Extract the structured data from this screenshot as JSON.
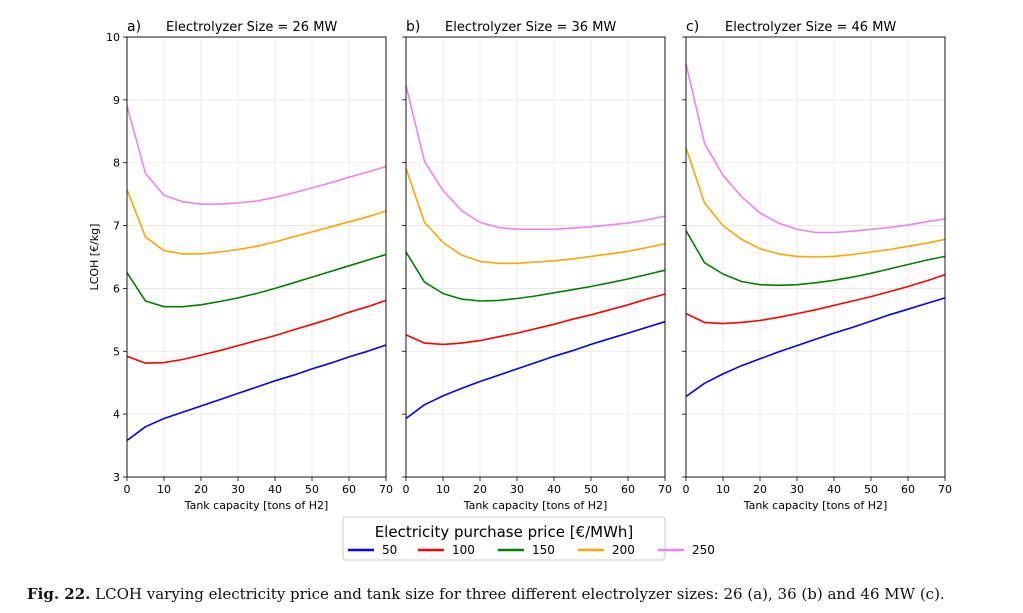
{
  "chart_data": {
    "type": "line",
    "x": [
      0,
      5,
      10,
      15,
      20,
      25,
      30,
      35,
      40,
      45,
      50,
      55,
      60,
      65,
      70
    ],
    "xlabel": "Tank capacity [tons of H2]",
    "ylabel": "LCOH [€/kg]",
    "xlim": [
      0,
      70
    ],
    "ylim": [
      3,
      10
    ],
    "xticks": [
      0,
      10,
      20,
      30,
      40,
      50,
      60,
      70
    ],
    "yticks": [
      3,
      4,
      5,
      6,
      7,
      8,
      9,
      10
    ],
    "grid": true,
    "legend": {
      "title": "Electricity purchase price [€/MWh]",
      "placement": "bottom-center"
    },
    "series_styles": [
      {
        "name": "50",
        "color": "#0000ff"
      },
      {
        "name": "100",
        "color": "#ff0000"
      },
      {
        "name": "150",
        "color": "#008000"
      },
      {
        "name": "200",
        "color": "#ffa500"
      },
      {
        "name": "250",
        "color": "#ee82ee"
      }
    ],
    "panels": [
      {
        "letter": "a)",
        "title": "Electrolyzer Size = 26 MW",
        "series": [
          {
            "name": "50",
            "values": [
              3.58,
              3.8,
              3.93,
              4.03,
              4.13,
              4.23,
              4.33,
              4.43,
              4.53,
              4.62,
              4.72,
              4.81,
              4.91,
              5.0,
              5.1
            ]
          },
          {
            "name": "100",
            "values": [
              4.92,
              4.81,
              4.82,
              4.87,
              4.94,
              5.01,
              5.09,
              5.17,
              5.25,
              5.34,
              5.43,
              5.52,
              5.62,
              5.71,
              5.81
            ]
          },
          {
            "name": "150",
            "values": [
              6.25,
              5.8,
              5.71,
              5.71,
              5.74,
              5.79,
              5.85,
              5.92,
              6.0,
              6.09,
              6.18,
              6.27,
              6.36,
              6.45,
              6.54
            ]
          },
          {
            "name": "200",
            "values": [
              7.57,
              6.82,
              6.6,
              6.55,
              6.55,
              6.58,
              6.62,
              6.67,
              6.74,
              6.82,
              6.9,
              6.98,
              7.06,
              7.14,
              7.23
            ]
          },
          {
            "name": "250",
            "values": [
              8.9,
              7.83,
              7.48,
              7.38,
              7.34,
              7.34,
              7.36,
              7.39,
              7.45,
              7.52,
              7.6,
              7.68,
              7.77,
              7.85,
              7.94
            ]
          }
        ]
      },
      {
        "letter": "b)",
        "title": "Electrolyzer Size = 36 MW",
        "series": [
          {
            "name": "50",
            "values": [
              3.93,
              4.15,
              4.29,
              4.41,
              4.52,
              4.62,
              4.72,
              4.82,
              4.92,
              5.01,
              5.11,
              5.2,
              5.29,
              5.38,
              5.47
            ]
          },
          {
            "name": "100",
            "values": [
              5.26,
              5.13,
              5.11,
              5.13,
              5.17,
              5.23,
              5.29,
              5.36,
              5.43,
              5.51,
              5.58,
              5.66,
              5.74,
              5.83,
              5.91
            ]
          },
          {
            "name": "150",
            "values": [
              6.58,
              6.1,
              5.92,
              5.83,
              5.8,
              5.81,
              5.84,
              5.88,
              5.93,
              5.98,
              6.03,
              6.09,
              6.15,
              6.22,
              6.29
            ]
          },
          {
            "name": "200",
            "values": [
              7.91,
              7.05,
              6.73,
              6.53,
              6.43,
              6.4,
              6.4,
              6.42,
              6.44,
              6.47,
              6.51,
              6.55,
              6.59,
              6.65,
              6.71
            ]
          },
          {
            "name": "250",
            "values": [
              9.23,
              8.02,
              7.56,
              7.24,
              7.05,
              6.97,
              6.94,
              6.94,
              6.94,
              6.96,
              6.98,
              7.01,
              7.04,
              7.09,
              7.15
            ]
          }
        ]
      },
      {
        "letter": "c)",
        "title": "Electrolyzer Size = 46 MW",
        "series": [
          {
            "name": "50",
            "values": [
              4.28,
              4.49,
              4.64,
              4.77,
              4.88,
              4.99,
              5.09,
              5.19,
              5.29,
              5.38,
              5.48,
              5.58,
              5.67,
              5.76,
              5.85
            ]
          },
          {
            "name": "100",
            "values": [
              5.6,
              5.46,
              5.44,
              5.46,
              5.49,
              5.54,
              5.6,
              5.66,
              5.73,
              5.8,
              5.87,
              5.95,
              6.03,
              6.12,
              6.22
            ]
          },
          {
            "name": "150",
            "values": [
              6.92,
              6.41,
              6.23,
              6.11,
              6.06,
              6.05,
              6.06,
              6.09,
              6.13,
              6.18,
              6.24,
              6.31,
              6.38,
              6.45,
              6.51
            ]
          },
          {
            "name": "200",
            "values": [
              8.24,
              7.36,
              7.0,
              6.78,
              6.63,
              6.55,
              6.51,
              6.5,
              6.51,
              6.54,
              6.58,
              6.62,
              6.67,
              6.72,
              6.78
            ]
          },
          {
            "name": "250",
            "values": [
              9.57,
              8.31,
              7.8,
              7.46,
              7.2,
              7.04,
              6.94,
              6.89,
              6.89,
              6.91,
              6.94,
              6.97,
              7.01,
              7.06,
              7.11
            ]
          }
        ]
      }
    ]
  },
  "caption": {
    "label": "Fig. 22.",
    "text": "LCOH varying electricity price and tank size for three different electrolyzer sizes: 26 (a), 36 (b) and 46 MW (c)."
  }
}
